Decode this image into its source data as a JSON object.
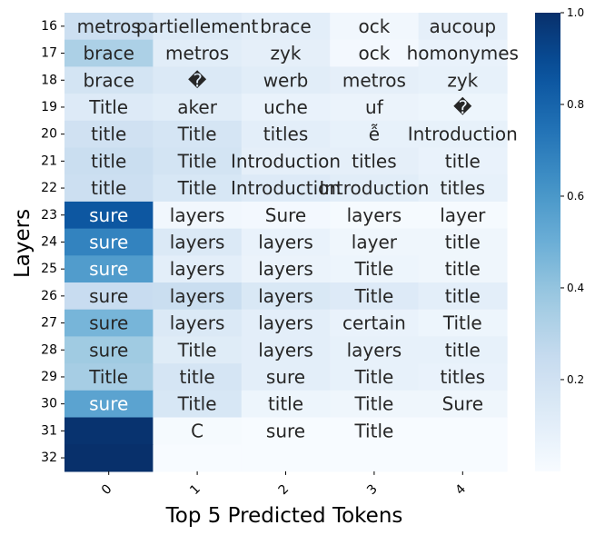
{
  "chart_data": {
    "type": "heatmap",
    "xlabel": "Top 5 Predicted Tokens",
    "ylabel": "Layers",
    "x_tick_labels": [
      "0",
      "1",
      "2",
      "3",
      "4"
    ],
    "y_tick_labels": [
      "16",
      "17",
      "18",
      "19",
      "20",
      "21",
      "22",
      "23",
      "24",
      "25",
      "26",
      "27",
      "28",
      "29",
      "30",
      "31",
      "32"
    ],
    "colormap": "Blues",
    "vmin": 0.0,
    "vmax": 1.0,
    "colorbar_ticks": [
      "0.2",
      "0.4",
      "0.6",
      "0.8",
      "1.0"
    ],
    "colorbar_tick_values": [
      0.2,
      0.4,
      0.6,
      0.8,
      1.0
    ],
    "tokens": [
      [
        "metros",
        "partiellement",
        "brace",
        "ock",
        "aucoup"
      ],
      [
        "brace",
        "metros",
        "zyk",
        "ock",
        "homonymes"
      ],
      [
        "brace",
        "�",
        "werb",
        "metros",
        "zyk"
      ],
      [
        "Title",
        "aker",
        "uche",
        "uf",
        "�"
      ],
      [
        "title",
        "Title",
        "titles",
        "ễ",
        "Introduction"
      ],
      [
        "title",
        "Title",
        "Introduction",
        "titles",
        "title"
      ],
      [
        "title",
        "Title",
        "Introduction",
        "Introduction",
        "titles"
      ],
      [
        "sure",
        "layers",
        "Sure",
        "layers",
        "layer"
      ],
      [
        "sure",
        "layers",
        "layers",
        "layer",
        "title"
      ],
      [
        "sure",
        "layers",
        "layers",
        "Title",
        "title"
      ],
      [
        "sure",
        "layers",
        "layers",
        "Title",
        "title"
      ],
      [
        "sure",
        "layers",
        "layers",
        "certain",
        "Title"
      ],
      [
        "sure",
        "Title",
        "layers",
        "layers",
        "title"
      ],
      [
        "Title",
        "title",
        "sure",
        "Title",
        "titles"
      ],
      [
        "sure",
        "Title",
        "title",
        "Title",
        "Sure"
      ],
      [
        "",
        "C",
        "sure",
        "Title",
        ""
      ],
      [
        "",
        "",
        "",
        "",
        ""
      ]
    ],
    "values": [
      [
        0.22,
        0.13,
        0.1,
        0.03,
        0.09
      ],
      [
        0.33,
        0.11,
        0.09,
        0.02,
        0.07
      ],
      [
        0.18,
        0.14,
        0.11,
        0.09,
        0.08
      ],
      [
        0.13,
        0.11,
        0.07,
        0.06,
        0.05
      ],
      [
        0.2,
        0.17,
        0.1,
        0.08,
        0.08
      ],
      [
        0.23,
        0.18,
        0.09,
        0.09,
        0.07
      ],
      [
        0.22,
        0.16,
        0.13,
        0.11,
        0.08
      ],
      [
        0.85,
        0.03,
        0.02,
        0.01,
        0.01
      ],
      [
        0.68,
        0.14,
        0.07,
        0.04,
        0.04
      ],
      [
        0.58,
        0.1,
        0.06,
        0.05,
        0.04
      ],
      [
        0.24,
        0.23,
        0.15,
        0.13,
        0.1
      ],
      [
        0.47,
        0.14,
        0.1,
        0.07,
        0.05
      ],
      [
        0.37,
        0.12,
        0.1,
        0.08,
        0.08
      ],
      [
        0.35,
        0.17,
        0.1,
        0.08,
        0.07
      ],
      [
        0.55,
        0.16,
        0.05,
        0.04,
        0.04
      ],
      [
        0.99,
        0.01,
        0.0,
        0.0,
        0.0
      ],
      [
        1.0,
        0.0,
        0.0,
        0.0,
        0.0
      ]
    ]
  }
}
